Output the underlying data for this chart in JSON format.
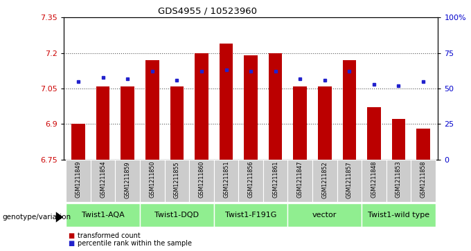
{
  "title": "GDS4955 / 10523960",
  "samples": [
    "GSM1211849",
    "GSM1211854",
    "GSM1211859",
    "GSM1211850",
    "GSM1211855",
    "GSM1211860",
    "GSM1211851",
    "GSM1211856",
    "GSM1211861",
    "GSM1211847",
    "GSM1211852",
    "GSM1211857",
    "GSM1211848",
    "GSM1211853",
    "GSM1211858"
  ],
  "transformed_count": [
    6.9,
    7.06,
    7.06,
    7.17,
    7.06,
    7.2,
    7.24,
    7.19,
    7.2,
    7.06,
    7.06,
    7.17,
    6.97,
    6.92,
    6.88
  ],
  "percentile_rank": [
    55,
    58,
    57,
    62,
    56,
    62,
    63,
    62,
    62,
    57,
    56,
    62,
    53,
    52,
    55
  ],
  "groups": [
    {
      "name": "Twist1-AQA",
      "indices": [
        0,
        1,
        2
      ]
    },
    {
      "name": "Twist1-DQD",
      "indices": [
        3,
        4,
        5
      ]
    },
    {
      "name": "Twist1-F191G",
      "indices": [
        6,
        7,
        8
      ]
    },
    {
      "name": "vector",
      "indices": [
        9,
        10,
        11
      ]
    },
    {
      "name": "Twist1-wild type",
      "indices": [
        12,
        13,
        14
      ]
    }
  ],
  "ylim_left": [
    6.75,
    7.35
  ],
  "ylim_right": [
    0,
    100
  ],
  "yticks_left": [
    6.75,
    6.9,
    7.05,
    7.2,
    7.35
  ],
  "ytick_labels_left": [
    "6.75",
    "6.9",
    "7.05",
    "7.2",
    "7.35"
  ],
  "yticks_right": [
    0,
    25,
    50,
    75,
    100
  ],
  "ytick_labels_right": [
    "0",
    "25",
    "50",
    "75",
    "100%"
  ],
  "bar_color": "#bb0000",
  "dot_color": "#2222cc",
  "bar_bottom": 6.75,
  "bar_width": 0.55,
  "legend_items": [
    {
      "label": "transformed count",
      "color": "#bb0000"
    },
    {
      "label": "percentile rank within the sample",
      "color": "#2222cc"
    }
  ],
  "genotype_label": "genotype/variation",
  "grid_color": "#888888",
  "sample_bg_color": "#cccccc",
  "group_bg_color": "#90ee90",
  "group_border_color": "#ffffff"
}
